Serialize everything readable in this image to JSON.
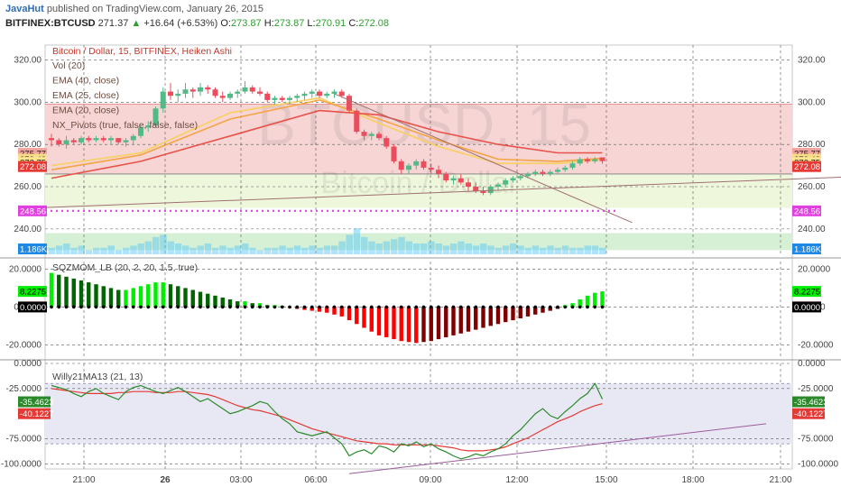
{
  "header": {
    "author": "JavaHut",
    "published_text": "published on TradingView.com, January 26, 2015",
    "symbol": "BITFINEX:BTCUSD",
    "last": "271.37",
    "change_arrow": "▲",
    "change": "+16.64 (+6.53%)",
    "open_label": "O:",
    "open": "273.87",
    "high_label": "H:",
    "high": "273.87",
    "low_label": "L:",
    "low": "270.91",
    "close_label": "C:",
    "close": "272.08"
  },
  "legend": {
    "title": "Bitcoin / Dollar, 15, BITFINEX, Heiken Ashi",
    "studies": [
      "Vol (20)",
      "EMA (40, close)",
      "EMA (25, close)",
      "EMA (20, close)",
      "NX_Pivots (true, false, false, false)"
    ],
    "sqz": "SQZMOM_LB (20, 2, 20, 1.5, true)",
    "willy": "Willy21MA13 (21, 13)"
  },
  "watermark": {
    "symbol": "BTCUSD, 15",
    "name": "Bitcoin / Dollar"
  },
  "colors": {
    "bull": "#53b987",
    "bear": "#eb4d5c",
    "bright_green": "#00ee00",
    "dark_green": "#006400",
    "bright_red": "#ff0000",
    "dark_red": "#800000",
    "ema40": "#e8524a",
    "ema25": "#f4a442",
    "ema20": "#f7d06a",
    "willy": "#2a8a2a",
    "willy_ma": "#e53935",
    "pivot": "#e040e0",
    "volume": "#4fc3f7",
    "resistance_zone": "#f7d5d5",
    "support_zone": "#eef7dc",
    "willy_band": "#e8e8f4"
  },
  "chart_data": [
    {
      "type": "candlestick",
      "title": "Bitcoin / Dollar, 15, BITFINEX, Heiken Ashi",
      "x_ticks": [
        "21:00",
        "26",
        "03:00",
        "06:00",
        "09:00",
        "12:00",
        "15:00",
        "18:00",
        "21:00"
      ],
      "ylim": [
        228,
        327
      ],
      "y_ticks": [
        240,
        260,
        280,
        300,
        320
      ],
      "y_tick_labels": [
        "240.00",
        "260.00",
        "280.00",
        "300.00",
        "320.00"
      ],
      "price_labels": [
        {
          "value": 275.77,
          "text": "275.77",
          "color": "#f3a29c"
        },
        {
          "value": 273.43,
          "text": "273.43",
          "color": "#f7dd8a"
        },
        {
          "value": 272.75,
          "text": "272.75",
          "color": "#fde68f"
        },
        {
          "value": 272.08,
          "text": "272.08",
          "color": "#e53935"
        },
        {
          "value": 248.56,
          "text": "248.56",
          "color": "#e040e0"
        }
      ],
      "volume_label": "1.186K",
      "pivot_level": 248.56,
      "resistance_zone": [
        266,
        299
      ],
      "support_zone": [
        250,
        266
      ],
      "candles": [
        [
          283,
          285,
          279,
          282
        ],
        [
          282,
          283,
          279,
          280
        ],
        [
          280,
          284,
          278,
          282
        ],
        [
          282,
          283,
          280,
          281
        ],
        [
          281,
          284,
          280,
          283
        ],
        [
          283,
          284,
          281,
          282
        ],
        [
          282,
          284,
          281,
          283
        ],
        [
          283,
          284,
          281,
          282
        ],
        [
          282,
          284,
          280,
          283
        ],
        [
          283,
          283,
          280,
          281
        ],
        [
          281,
          283,
          279,
          282
        ],
        [
          282,
          285,
          280,
          284
        ],
        [
          284,
          289,
          283,
          288
        ],
        [
          288,
          291,
          286,
          289
        ],
        [
          289,
          298,
          288,
          297
        ],
        [
          297,
          307,
          295,
          305
        ],
        [
          305,
          309,
          301,
          303
        ],
        [
          303,
          306,
          300,
          304
        ],
        [
          304,
          309,
          302,
          306
        ],
        [
          306,
          307,
          302,
          305
        ],
        [
          305,
          309,
          303,
          307
        ],
        [
          307,
          308,
          304,
          306
        ],
        [
          306,
          307,
          302,
          303
        ],
        [
          303,
          305,
          300,
          302
        ],
        [
          302,
          305,
          301,
          304
        ],
        [
          304,
          306,
          302,
          305
        ],
        [
          305,
          310,
          304,
          307
        ],
        [
          307,
          308,
          304,
          305
        ],
        [
          305,
          307,
          303,
          304
        ],
        [
          304,
          305,
          300,
          301
        ],
        [
          301,
          303,
          299,
          302
        ],
        [
          302,
          303,
          300,
          301
        ],
        [
          301,
          303,
          299,
          302
        ],
        [
          302,
          304,
          300,
          303
        ],
        [
          303,
          305,
          301,
          304
        ],
        [
          304,
          306,
          302,
          305
        ],
        [
          305,
          306,
          302,
          303
        ],
        [
          303,
          305,
          302,
          304
        ],
        [
          304,
          306,
          302,
          305
        ],
        [
          305,
          306,
          302,
          303
        ],
        [
          303,
          304,
          295,
          296
        ],
        [
          296,
          297,
          285,
          286
        ],
        [
          286,
          287,
          282,
          284
        ],
        [
          284,
          286,
          282,
          285
        ],
        [
          285,
          286,
          282,
          283
        ],
        [
          283,
          284,
          278,
          279
        ],
        [
          279,
          280,
          271,
          272
        ],
        [
          272,
          273,
          266,
          268
        ],
        [
          268,
          271,
          266,
          270
        ],
        [
          270,
          273,
          268,
          272
        ],
        [
          272,
          273,
          268,
          269
        ],
        [
          269,
          271,
          266,
          268
        ],
        [
          268,
          270,
          264,
          266
        ],
        [
          266,
          267,
          262,
          263
        ],
        [
          263,
          265,
          261,
          264
        ],
        [
          264,
          266,
          261,
          262
        ],
        [
          262,
          264,
          258,
          260
        ],
        [
          260,
          262,
          257,
          258
        ],
        [
          258,
          260,
          256,
          257
        ],
        [
          257,
          261,
          256,
          260
        ],
        [
          260,
          262,
          258,
          261
        ],
        [
          261,
          264,
          260,
          263
        ],
        [
          263,
          265,
          262,
          264
        ],
        [
          264,
          266,
          263,
          265
        ],
        [
          265,
          267,
          264,
          266
        ],
        [
          266,
          268,
          265,
          267
        ],
        [
          267,
          268,
          265,
          266
        ],
        [
          266,
          268,
          265,
          267
        ],
        [
          267,
          269,
          266,
          268
        ],
        [
          268,
          270,
          267,
          269
        ],
        [
          269,
          272,
          268,
          271
        ],
        [
          271,
          274,
          270,
          273
        ],
        [
          273,
          274,
          271,
          272
        ],
        [
          272,
          274,
          271,
          273
        ],
        [
          273.87,
          273.87,
          270.91,
          272.08
        ]
      ],
      "ema40": [
        {
          "x": 0,
          "y": 264
        },
        {
          "x": 12,
          "y": 272
        },
        {
          "x": 24,
          "y": 284
        },
        {
          "x": 36,
          "y": 296
        },
        {
          "x": 44,
          "y": 294
        },
        {
          "x": 52,
          "y": 286
        },
        {
          "x": 60,
          "y": 280
        },
        {
          "x": 68,
          "y": 276
        },
        {
          "x": 74,
          "y": 276
        }
      ],
      "ema25": [
        {
          "x": 0,
          "y": 268
        },
        {
          "x": 12,
          "y": 275
        },
        {
          "x": 24,
          "y": 292
        },
        {
          "x": 36,
          "y": 301
        },
        {
          "x": 44,
          "y": 292
        },
        {
          "x": 52,
          "y": 282
        },
        {
          "x": 60,
          "y": 273
        },
        {
          "x": 68,
          "y": 272
        },
        {
          "x": 74,
          "y": 273.4
        }
      ],
      "ema20": [
        {
          "x": 0,
          "y": 270
        },
        {
          "x": 12,
          "y": 276
        },
        {
          "x": 24,
          "y": 295
        },
        {
          "x": 36,
          "y": 302
        },
        {
          "x": 44,
          "y": 290
        },
        {
          "x": 52,
          "y": 279
        },
        {
          "x": 60,
          "y": 271
        },
        {
          "x": 68,
          "y": 271
        },
        {
          "x": 74,
          "y": 272.8
        }
      ],
      "trendlines": [
        {
          "x1": 38,
          "y1": 304,
          "x2": 78,
          "y2": 243
        },
        {
          "x1": -2,
          "y1": 250,
          "x2": 110,
          "y2": 265
        }
      ],
      "volume": [
        3,
        4,
        5,
        3,
        4,
        2,
        3,
        3,
        4,
        2,
        3,
        4,
        5,
        6,
        8,
        9,
        6,
        5,
        4,
        3,
        4,
        5,
        3,
        4,
        3,
        4,
        5,
        3,
        2,
        3,
        3,
        4,
        3,
        4,
        3,
        4,
        3,
        4,
        4,
        6,
        9,
        12,
        8,
        6,
        5,
        6,
        7,
        8,
        6,
        5,
        5,
        6,
        5,
        4,
        5,
        6,
        5,
        4,
        5,
        4,
        3,
        4,
        5,
        4,
        3,
        4,
        3,
        4,
        3,
        4,
        3,
        3,
        4,
        4,
        3
      ]
    },
    {
      "type": "bar",
      "title": "SQZMOM_LB (20, 2, 20, 1.5, true)",
      "ylim": [
        -26,
        24
      ],
      "y_ticks": [
        20,
        0,
        -20
      ],
      "y_tick_labels": [
        "20.0000",
        "0.0000",
        "-20.0000"
      ],
      "last_value_label": "8.2275",
      "zero_label": "0.0000",
      "values": [
        18,
        17,
        16,
        15,
        14,
        13,
        12,
        11,
        10,
        9,
        9,
        10,
        11,
        12,
        13,
        13,
        12,
        11,
        10,
        9,
        8,
        7,
        6,
        5,
        4,
        3,
        3,
        2,
        2,
        1,
        1,
        0.5,
        -0.5,
        -1,
        -1.5,
        -2,
        -2.5,
        -3,
        -4,
        -5,
        -7,
        -9,
        -11,
        -13,
        -15,
        -16,
        -17,
        -18,
        -18.5,
        -19,
        -18.5,
        -18,
        -17,
        -16,
        -15,
        -14,
        -13,
        -12,
        -11,
        -10,
        -9,
        -8,
        -7,
        -6,
        -5,
        -4,
        -3,
        -2,
        -1,
        1,
        2,
        4,
        6,
        7.5,
        8.2275
      ]
    },
    {
      "type": "line",
      "title": "Willy21MA13 (21, 13)",
      "ylim": [
        -105,
        0
      ],
      "y_ticks": [
        0,
        -25,
        -75,
        -100
      ],
      "y_tick_labels": [
        "0.0000",
        "-25.0000",
        "-75.0000",
        "-100.0000"
      ],
      "band": [
        -80,
        -20
      ],
      "willy_label": "-35.4623",
      "ma_label": "-40.1227",
      "series": [
        {
          "values": [
            -22,
            -24,
            -26,
            -30,
            -33,
            -28,
            -25,
            -30,
            -33,
            -36,
            -28,
            -24,
            -22,
            -25,
            -28,
            -30,
            -27,
            -24,
            -28,
            -33,
            -38,
            -35,
            -40,
            -45,
            -50,
            -48,
            -45,
            -42,
            -38,
            -40,
            -48,
            -55,
            -60,
            -68,
            -70,
            -72,
            -70,
            -68,
            -74,
            -80,
            -92,
            -88,
            -86,
            -90,
            -82,
            -84,
            -88,
            -80,
            -82,
            -78,
            -83,
            -80,
            -85,
            -88,
            -92,
            -95,
            -93,
            -90,
            -92,
            -88,
            -85,
            -80,
            -72,
            -66,
            -58,
            -50,
            -45,
            -52,
            -55,
            -48,
            -42,
            -35,
            -30,
            -20,
            -35.4623
          ]
        },
        {
          "values": [
            -25,
            -26,
            -27,
            -28,
            -29,
            -30,
            -30,
            -30,
            -30,
            -29,
            -29,
            -28,
            -28,
            -28,
            -29,
            -29,
            -29,
            -28,
            -28,
            -29,
            -30,
            -31,
            -33,
            -36,
            -39,
            -42,
            -44,
            -46,
            -47,
            -49,
            -51,
            -53,
            -56,
            -59,
            -62,
            -65,
            -67,
            -69,
            -71,
            -73,
            -75,
            -77,
            -78,
            -79,
            -80,
            -80,
            -81,
            -81,
            -81,
            -81,
            -81,
            -81,
            -82,
            -83,
            -84,
            -86,
            -87,
            -87,
            -87,
            -86,
            -85,
            -83,
            -80,
            -77,
            -74,
            -70,
            -66,
            -62,
            -58,
            -55,
            -52,
            -48,
            -45,
            -42,
            -40.1227
          ]
        }
      ],
      "trendline": {
        "x1": 40,
        "y1": -118,
        "x2": 96,
        "y2": -60
      }
    }
  ]
}
